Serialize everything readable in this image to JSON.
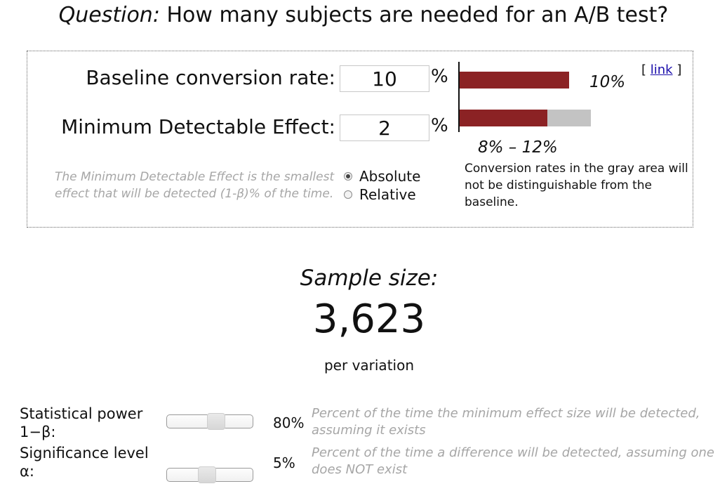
{
  "question": {
    "prefix": "Question:",
    "text": " How many subjects are needed for an A/B test?"
  },
  "inputs": {
    "baseline_label": "Baseline conversion rate:",
    "baseline_value": "10",
    "mde_label": "Minimum Detectable Effect:",
    "mde_value": "2",
    "pct_symbol": "%"
  },
  "mde_description": "The Minimum Detectable Effect is the smallest effect that will be detected (1-β)% of the time.",
  "mde_mode": {
    "options": [
      "Absolute",
      "Relative"
    ],
    "selected": "Absolute"
  },
  "visual": {
    "baseline_pct": "10%",
    "range_label": "8% – 12%",
    "gray_area_note": "Conversion rates in the gray area will not be distinguishable from the baseline.",
    "link_open": "[ ",
    "link_text": "link",
    "link_close": " ]",
    "colors": {
      "bar": "#8b2224",
      "gray_area": "#c3c3c3"
    }
  },
  "result": {
    "label": "Sample size:",
    "value": "3,623",
    "unit": "per variation"
  },
  "params": [
    {
      "label_line1": "Statistical power",
      "label_line2": "1−β:",
      "value": "80%",
      "slider_level": 0.58,
      "desc": "Percent of the time the minimum effect size will be detected, assuming it exists"
    },
    {
      "label_line1": "Significance level",
      "label_line2": "α:",
      "value": "5%",
      "slider_level": 0.45,
      "desc": "Percent of the time a difference will be detected, assuming one does NOT exist"
    }
  ]
}
